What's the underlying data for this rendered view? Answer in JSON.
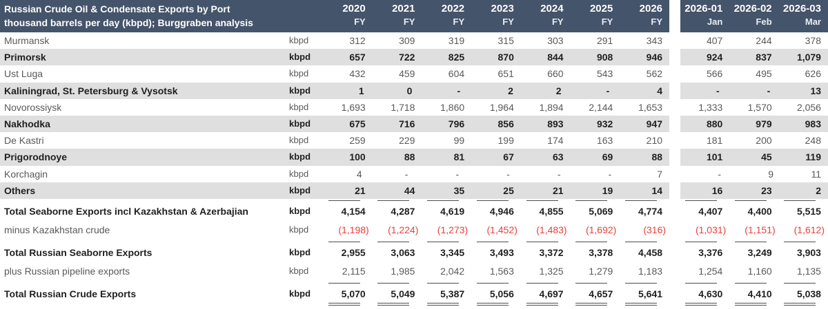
{
  "chart_data": {
    "type": "table",
    "title": "Russian Crude Oil & Condensate Exports by Port",
    "subtitle": "thousand barrels per day (kbpd); Burggraben analysis",
    "unit": "kbpd",
    "fy_columns": [
      {
        "label": "2020",
        "sub": "FY"
      },
      {
        "label": "2021",
        "sub": "FY"
      },
      {
        "label": "2022",
        "sub": "FY"
      },
      {
        "label": "2023",
        "sub": "FY"
      },
      {
        "label": "2024",
        "sub": "FY"
      },
      {
        "label": "2025",
        "sub": "FY"
      },
      {
        "label": "2026",
        "sub": "FY"
      }
    ],
    "month_columns": [
      {
        "label": "2026-01",
        "sub": "Jan"
      },
      {
        "label": "2026-02",
        "sub": "Feb"
      },
      {
        "label": "2026-03",
        "sub": "Mar"
      }
    ],
    "port_rows": [
      {
        "name": "Murmansk",
        "emphasis": false,
        "fy": [
          "312",
          "309",
          "319",
          "315",
          "303",
          "291",
          "343"
        ],
        "months": [
          "407",
          "244",
          "378"
        ]
      },
      {
        "name": "Primorsk",
        "emphasis": true,
        "fy": [
          "657",
          "722",
          "825",
          "870",
          "844",
          "908",
          "946"
        ],
        "months": [
          "924",
          "837",
          "1,079"
        ]
      },
      {
        "name": "Ust Luga",
        "emphasis": false,
        "fy": [
          "432",
          "459",
          "604",
          "651",
          "660",
          "543",
          "562"
        ],
        "months": [
          "566",
          "495",
          "626"
        ]
      },
      {
        "name": "Kaliningrad, St. Petersburg & Vysotsk",
        "emphasis": true,
        "fy": [
          "1",
          "0",
          "-",
          "2",
          "2",
          "-",
          "4"
        ],
        "months": [
          "-",
          "-",
          "13"
        ]
      },
      {
        "name": "Novorossiysk",
        "emphasis": false,
        "fy": [
          "1,693",
          "1,718",
          "1,860",
          "1,964",
          "1,894",
          "2,144",
          "1,653"
        ],
        "months": [
          "1,333",
          "1,570",
          "2,056"
        ]
      },
      {
        "name": "Nakhodka",
        "emphasis": true,
        "fy": [
          "675",
          "716",
          "796",
          "856",
          "893",
          "932",
          "947"
        ],
        "months": [
          "880",
          "979",
          "983"
        ]
      },
      {
        "name": "De Kastri",
        "emphasis": false,
        "fy": [
          "259",
          "229",
          "99",
          "199",
          "174",
          "163",
          "210"
        ],
        "months": [
          "181",
          "200",
          "248"
        ]
      },
      {
        "name": "Prigorodnoye",
        "emphasis": true,
        "fy": [
          "100",
          "88",
          "81",
          "67",
          "63",
          "69",
          "88"
        ],
        "months": [
          "101",
          "45",
          "119"
        ]
      },
      {
        "name": "Korchagin",
        "emphasis": false,
        "fy": [
          "4",
          "-",
          "-",
          "-",
          "-",
          "-",
          "7"
        ],
        "months": [
          "-",
          "9",
          "11"
        ]
      },
      {
        "name": "Others",
        "emphasis": true,
        "fy": [
          "21",
          "44",
          "35",
          "25",
          "21",
          "19",
          "14"
        ],
        "months": [
          "16",
          "23",
          "2"
        ]
      }
    ],
    "summary_rows": [
      {
        "name": "Total Seaborne Exports incl Kazakhstan & Azerbajian",
        "kind": "total",
        "rule_above": true,
        "double_rule_below": false,
        "fy": [
          "4,154",
          "4,287",
          "4,619",
          "4,946",
          "4,855",
          "5,069",
          "4,774"
        ],
        "months": [
          "4,407",
          "4,400",
          "5,515"
        ]
      },
      {
        "name": "minus Kazakhstan crude",
        "kind": "deduction",
        "rule_above": false,
        "double_rule_below": false,
        "fy": [
          "(1,198)",
          "(1,224)",
          "(1,273)",
          "(1,452)",
          "(1,483)",
          "(1,692)",
          "(316)"
        ],
        "months": [
          "(1,031)",
          "(1,151)",
          "(1,612)"
        ]
      },
      {
        "name": "Total Russian Seaborne Exports",
        "kind": "total",
        "rule_above": true,
        "double_rule_below": false,
        "fy": [
          "2,955",
          "3,063",
          "3,345",
          "3,493",
          "3,372",
          "3,378",
          "4,458"
        ],
        "months": [
          "3,376",
          "3,249",
          "3,903"
        ]
      },
      {
        "name": "plus Russian pipeline exports",
        "kind": "addition",
        "rule_above": false,
        "double_rule_below": false,
        "fy": [
          "2,115",
          "1,985",
          "2,042",
          "1,563",
          "1,325",
          "1,279",
          "1,183"
        ],
        "months": [
          "1,254",
          "1,160",
          "1,135"
        ]
      },
      {
        "name": "Total Russian Crude Exports",
        "kind": "total",
        "rule_above": true,
        "double_rule_below": true,
        "fy": [
          "5,070",
          "5,049",
          "5,387",
          "5,056",
          "4,697",
          "4,657",
          "5,641"
        ],
        "months": [
          "4,630",
          "4,410",
          "5,038"
        ]
      }
    ]
  },
  "colors": {
    "header_bg": "#44546A",
    "header_text": "#FFFFFF",
    "stripe": "#DFDFDF",
    "text_primary": "#1F1F1F",
    "text_secondary": "#595959",
    "negative": "#E8403A",
    "rule": "#4D4D4D"
  }
}
